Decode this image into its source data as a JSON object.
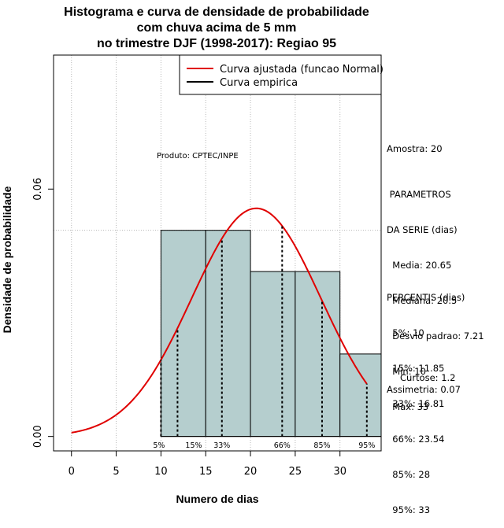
{
  "title_lines": [
    "Histograma e curva de densidade de probabilidade",
    "com chuva acima de 5 mm",
    "no trimestre DJF (1998-2017): Regiao 95"
  ],
  "xlabel": "Numero de dias",
  "ylabel": "Densidade de probabilidade",
  "credit": "Produto: CPTEC/INPE",
  "stats": {
    "amostra": "Amostra: 20",
    "parametros_lines": [
      " PARAMETROS",
      "DA SERIE (dias)",
      "  Media: 20.65",
      "  Mediana: 20.5",
      "  Desvio padrao: 7.21",
      "  Min: 10",
      "  Max: 33"
    ],
    "percentis_lines": [
      "PERCENTIS (dias)",
      "  5%: 10",
      "  15%: 11.85",
      "  33%: 16.81",
      "  66%: 23.54",
      "  85%: 28",
      "  95%: 33"
    ],
    "curtose": "Curtose: 1.2",
    "assimetria": "Assimetria: 0.07"
  },
  "chart_data": {
    "type": "bar",
    "xlim": [
      -2,
      34.6
    ],
    "ylim": [
      -0.0035,
      0.0925
    ],
    "xticks": [
      0,
      5,
      10,
      15,
      20,
      25,
      30
    ],
    "yticks": [
      0.0,
      0.06
    ],
    "ytick_labels": [
      "0.00",
      "0.06"
    ],
    "bins": [
      {
        "x0": 10,
        "x1": 15,
        "density": 0.05
      },
      {
        "x0": 15,
        "x1": 20,
        "density": 0.05
      },
      {
        "x0": 20,
        "x1": 25,
        "density": 0.04
      },
      {
        "x0": 25,
        "x1": 30,
        "density": 0.04
      },
      {
        "x0": 30,
        "x1": 35,
        "density": 0.02
      }
    ],
    "hist_fill": "#b5cece",
    "grid": true,
    "grid_v": [
      0,
      5,
      10,
      15,
      20,
      25,
      30
    ],
    "grid_h": [
      0.05
    ],
    "normal_fit": {
      "mean": 20.65,
      "sd": 7.21,
      "x_from": 0,
      "x_to": 33,
      "color": "#e00000"
    },
    "percentiles": [
      {
        "label": "5%",
        "x": 10
      },
      {
        "label": "15%",
        "x": 11.85
      },
      {
        "label": "33%",
        "x": 16.81
      },
      {
        "label": "66%",
        "x": 23.54
      },
      {
        "label": "85%",
        "x": 28
      },
      {
        "label": "95%",
        "x": 33
      }
    ],
    "legend": {
      "position": "top-right",
      "entries": [
        {
          "label": "Curva ajustada (funcao Normal)",
          "color": "#e00000"
        },
        {
          "label": "Curva empirica",
          "color": "#000000"
        }
      ]
    }
  }
}
